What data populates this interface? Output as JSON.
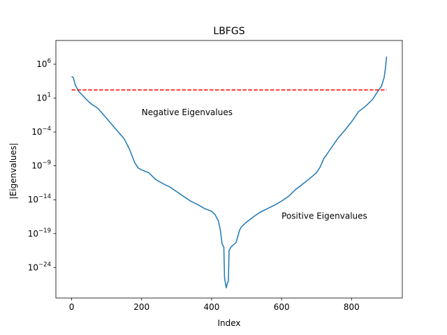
{
  "chart_data": {
    "type": "line",
    "title": "LBFGS",
    "xlabel": "Index",
    "ylabel": "|Eigenvalues|",
    "xlim": [
      -45,
      945
    ],
    "ylim_exp": [
      -28.5,
      9.5
    ],
    "yscale": "log",
    "grid": false,
    "xticks": [
      {
        "value": 0,
        "label": "0"
      },
      {
        "value": 200,
        "label": "200"
      },
      {
        "value": 400,
        "label": "400"
      },
      {
        "value": 600,
        "label": "600"
      },
      {
        "value": 800,
        "label": "800"
      }
    ],
    "yticks": [
      {
        "exp": 6,
        "base": "10",
        "power": "6"
      },
      {
        "exp": 1,
        "base": "10",
        "power": "1"
      },
      {
        "exp": -4,
        "base": "10",
        "power": "−4"
      },
      {
        "exp": -9,
        "base": "10",
        "power": "−9"
      },
      {
        "exp": -14,
        "base": "10",
        "power": "−14"
      },
      {
        "exp": -19,
        "base": "10",
        "power": "−19"
      },
      {
        "exp": -24,
        "base": "10",
        "power": "−24"
      }
    ],
    "series": [
      {
        "color": "#1f77b4",
        "points": [
          [
            0,
            4.2
          ],
          [
            5,
            4.0
          ],
          [
            10,
            3.0
          ],
          [
            20,
            2.0
          ],
          [
            35,
            1.2
          ],
          [
            50,
            0.4
          ],
          [
            60,
            0.0
          ],
          [
            75,
            -0.5
          ],
          [
            100,
            -2.0
          ],
          [
            125,
            -3.5
          ],
          [
            150,
            -5.0
          ],
          [
            165,
            -6.5
          ],
          [
            180,
            -8.5
          ],
          [
            190,
            -9.3
          ],
          [
            200,
            -9.6
          ],
          [
            220,
            -10.0
          ],
          [
            240,
            -11.0
          ],
          [
            260,
            -11.6
          ],
          [
            280,
            -12.1
          ],
          [
            300,
            -12.8
          ],
          [
            320,
            -13.5
          ],
          [
            340,
            -14.2
          ],
          [
            360,
            -14.7
          ],
          [
            380,
            -15.3
          ],
          [
            400,
            -15.7
          ],
          [
            410,
            -16.2
          ],
          [
            420,
            -17.2
          ],
          [
            425,
            -18.5
          ],
          [
            430,
            -20.5
          ],
          [
            435,
            -21.0
          ],
          [
            437,
            -25.5
          ],
          [
            440,
            -26.5
          ],
          [
            442,
            -27.0
          ],
          [
            445,
            -26.3
          ],
          [
            448,
            -26.0
          ],
          [
            450,
            -21.5
          ],
          [
            455,
            -21.0
          ],
          [
            470,
            -20.3
          ],
          [
            480,
            -18.5
          ],
          [
            485,
            -18.0
          ],
          [
            500,
            -17.3
          ],
          [
            520,
            -16.5
          ],
          [
            540,
            -15.8
          ],
          [
            560,
            -15.3
          ],
          [
            580,
            -14.8
          ],
          [
            600,
            -14.2
          ],
          [
            620,
            -13.5
          ],
          [
            640,
            -12.5
          ],
          [
            660,
            -11.7
          ],
          [
            680,
            -10.9
          ],
          [
            700,
            -10.0
          ],
          [
            710,
            -9.2
          ],
          [
            720,
            -8.0
          ],
          [
            740,
            -6.5
          ],
          [
            760,
            -5.0
          ],
          [
            780,
            -3.8
          ],
          [
            800,
            -2.5
          ],
          [
            820,
            -1.0
          ],
          [
            840,
            -0.2
          ],
          [
            860,
            0.8
          ],
          [
            875,
            2.0
          ],
          [
            885,
            2.7
          ],
          [
            893,
            4.0
          ],
          [
            897,
            5.5
          ],
          [
            900,
            7.1
          ]
        ]
      },
      {
        "color": "#ff0000",
        "dashed": true,
        "points": [
          [
            0,
            2.2
          ],
          [
            900,
            2.2
          ]
        ]
      }
    ],
    "annotations": [
      {
        "text": "Negative Eigenvalues",
        "x": 200,
        "exp": -1.5
      },
      {
        "text": "Positive Eigenvalues",
        "x": 600,
        "exp": -16.8
      }
    ]
  }
}
